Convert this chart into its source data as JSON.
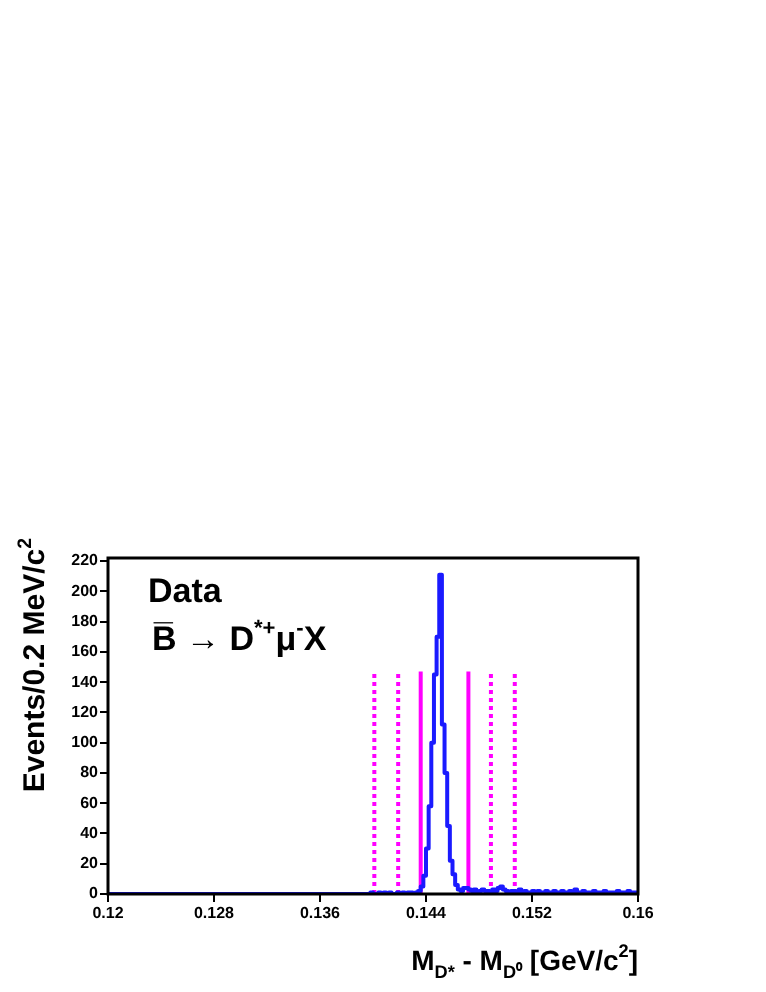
{
  "chart_data": {
    "type": "histogram",
    "xlabel": "M$_{D*}$ - M$_{D⁰}$ [GeV/c$^{2}$]",
    "ylabel": "Events/0.2 MeV/c$^{2}$",
    "annotations": [
      "Data",
      "B̅ → D$^{*+}$μ$^{-}$X"
    ],
    "bins": [
      0.12,
      0.1202,
      0.1204,
      0.1206,
      0.1208,
      0.121,
      0.1212,
      0.1214,
      0.1216,
      0.1218,
      0.122,
      0.1222,
      0.1224,
      0.1226,
      0.1228,
      0.123,
      0.1232,
      0.1234,
      0.1236,
      0.1238,
      0.124,
      0.1242,
      0.1244,
      0.1246,
      0.1248,
      0.125,
      0.1252,
      0.1254,
      0.1256,
      0.1258,
      0.126,
      0.1262,
      0.1264,
      0.1266,
      0.1268,
      0.127,
      0.1272,
      0.1274,
      0.1276,
      0.1278,
      0.128,
      0.1282,
      0.1284,
      0.1286,
      0.1288,
      0.129,
      0.1292,
      0.1294,
      0.1296,
      0.1298,
      0.13,
      0.1302,
      0.1304,
      0.1306,
      0.1308,
      0.131,
      0.1312,
      0.1314,
      0.1316,
      0.1318,
      0.132,
      0.1322,
      0.1324,
      0.1326,
      0.1328,
      0.133,
      0.1332,
      0.1334,
      0.1336,
      0.1338,
      0.134,
      0.1342,
      0.1344,
      0.1346,
      0.1348,
      0.135,
      0.1352,
      0.1354,
      0.1356,
      0.1358,
      0.136,
      0.1362,
      0.1364,
      0.1366,
      0.1368,
      0.137,
      0.1372,
      0.1374,
      0.1376,
      0.1378,
      0.138,
      0.1382,
      0.1384,
      0.1386,
      0.1388,
      0.139,
      0.1392,
      0.1394,
      0.1396,
      0.1398,
      0.14,
      0.1402,
      0.1404,
      0.1406,
      0.1408,
      0.141,
      0.1412,
      0.1414,
      0.1416,
      0.1418,
      0.142,
      0.1422,
      0.1424,
      0.1426,
      0.1428,
      0.143,
      0.1432,
      0.1434,
      0.1436,
      0.1438,
      0.144,
      0.1442,
      0.1444,
      0.1446,
      0.1448,
      0.145,
      0.1452,
      0.1454,
      0.1456,
      0.1458,
      0.146,
      0.1462,
      0.1464,
      0.1466,
      0.1468,
      0.147,
      0.1472,
      0.1474,
      0.1476,
      0.1478,
      0.148,
      0.1482,
      0.1484,
      0.1486,
      0.1488,
      0.149,
      0.1492,
      0.1494,
      0.1496,
      0.1498,
      0.15,
      0.1502,
      0.1504,
      0.1506,
      0.1508,
      0.151,
      0.1512,
      0.1514,
      0.1516,
      0.1518,
      0.152,
      0.1522,
      0.1524,
      0.1526,
      0.1528,
      0.153,
      0.1532,
      0.1534,
      0.1536,
      0.1538,
      0.154,
      0.1542,
      0.1544,
      0.1546,
      0.1548,
      0.155,
      0.1552,
      0.1554,
      0.1556,
      0.1558,
      0.156,
      0.1562,
      0.1564,
      0.1566,
      0.1568,
      0.157,
      0.1572,
      0.1574,
      0.1576,
      0.1578,
      0.158,
      0.1582,
      0.1584,
      0.1586,
      0.1588,
      0.159,
      0.1592,
      0.1594,
      0.1596,
      0.1598,
      0.16
    ],
    "series": [
      {
        "type": "histogram",
        "color": "#1a1aff",
        "values": [
          0,
          0,
          0,
          0,
          0,
          0,
          0,
          0,
          0,
          0,
          0,
          0,
          0,
          0,
          0,
          0,
          0,
          0,
          0,
          0,
          0,
          0,
          0,
          0,
          0,
          0,
          0,
          0,
          0,
          0,
          0,
          0,
          0,
          0,
          0,
          0,
          0,
          0,
          0,
          0,
          0,
          0,
          0,
          0,
          0,
          0,
          0,
          0,
          0,
          0,
          0,
          0,
          0,
          0,
          0,
          0,
          0,
          0,
          0,
          0,
          0,
          0,
          0,
          0,
          0,
          0,
          0,
          0,
          0,
          0,
          0,
          0,
          0,
          0,
          0,
          0,
          0,
          0,
          0,
          0,
          0,
          0,
          0,
          0,
          0,
          0,
          0,
          0,
          0,
          0,
          0,
          0,
          0,
          0,
          0,
          0,
          0,
          0,
          0,
          0,
          1,
          0,
          0,
          1,
          0,
          1,
          0,
          1,
          0,
          0,
          1,
          0,
          1,
          0,
          1,
          1,
          0,
          1,
          2,
          5,
          12,
          30,
          58,
          100,
          145,
          170,
          211,
          112,
          80,
          45,
          22,
          13,
          6,
          3,
          2,
          4,
          4,
          3,
          2,
          3,
          1,
          2,
          3,
          2,
          2,
          1,
          3,
          2,
          4,
          5,
          3,
          2,
          1,
          2,
          2,
          1,
          3,
          1,
          2,
          1,
          1,
          2,
          1,
          2,
          1,
          1,
          2,
          1,
          1,
          2,
          1,
          1,
          2,
          1,
          1,
          2,
          1,
          3,
          1,
          1,
          2,
          1,
          1,
          1,
          2,
          1,
          1,
          1,
          2,
          1,
          1,
          1,
          1,
          2,
          1,
          1,
          1,
          2,
          1,
          1
        ]
      },
      {
        "type": "line",
        "color": "#ff00ff",
        "line_style": "dotted",
        "x": [
          0.1401,
          0.1401
        ],
        "values": [
          0,
          147
        ]
      },
      {
        "type": "line",
        "color": "#ff00ff",
        "line_style": "dotted",
        "x": [
          0.1419,
          0.1419
        ],
        "values": [
          0,
          147
        ]
      },
      {
        "type": "line",
        "color": "#ff00ff",
        "line_style": "solid",
        "x": [
          0.1436,
          0.1436
        ],
        "values": [
          0,
          147
        ]
      },
      {
        "type": "line",
        "color": "#ff00ff",
        "line_style": "solid",
        "x": [
          0.1472,
          0.1472
        ],
        "values": [
          0,
          147
        ]
      },
      {
        "type": "line",
        "color": "#ff00ff",
        "line_style": "dotted",
        "x": [
          0.1489,
          0.1489
        ],
        "values": [
          0,
          147
        ]
      },
      {
        "type": "line",
        "color": "#ff00ff",
        "line_style": "dotted",
        "x": [
          0.1507,
          0.1507
        ],
        "values": [
          0,
          147
        ]
      }
    ],
    "xlim": [
      0.12,
      0.16
    ],
    "xticks": [
      0.12,
      0.128,
      0.136,
      0.144,
      0.152,
      0.16
    ],
    "ylim": [
      0,
      222
    ],
    "yticks": [
      0,
      20,
      40,
      60,
      80,
      100,
      120,
      140,
      160,
      180,
      200,
      220
    ],
    "grid": false,
    "legend": false
  }
}
